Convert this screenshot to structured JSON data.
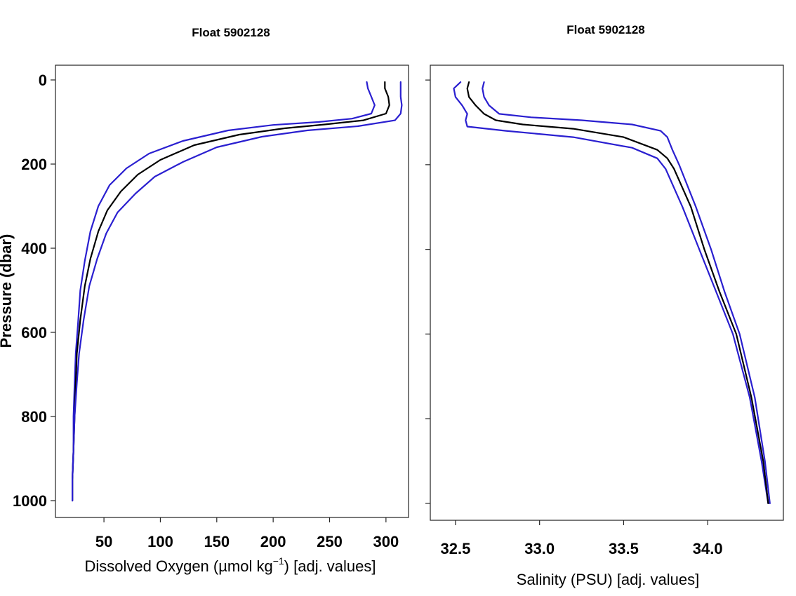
{
  "chart_data": [
    {
      "type": "line",
      "title": "Float 5902128",
      "xlabel": "Dissolved Oxygen (µmol kg",
      "xlabel_sup": "−1",
      "xlabel_tail": ")  [adj. values]",
      "ylabel": "Pressure (dbar)",
      "xlim": [
        7,
        320
      ],
      "ylim": [
        1040,
        -35
      ],
      "y_inverted": true,
      "xticks": [
        50,
        100,
        150,
        200,
        250,
        300
      ],
      "yticks": [
        0,
        200,
        400,
        600,
        800,
        1000
      ],
      "grid": false,
      "colors": {
        "mean": "#000000",
        "bounds": "#2a1fd0"
      },
      "series": [
        {
          "role": "lower",
          "x": [
            283,
            284,
            287,
            290,
            287,
            270,
            240,
            200,
            160,
            120,
            90,
            70,
            55,
            45,
            38,
            33,
            29,
            27,
            25,
            24,
            23,
            23,
            22,
            22
          ],
          "y": [
            5,
            20,
            40,
            60,
            80,
            92,
            100,
            107,
            120,
            145,
            175,
            210,
            250,
            300,
            360,
            430,
            500,
            580,
            650,
            720,
            800,
            880,
            950,
            1000
          ]
        },
        {
          "role": "mean",
          "x": [
            299,
            299,
            302,
            303,
            300,
            280,
            245,
            210,
            170,
            130,
            100,
            80,
            65,
            53,
            45,
            38,
            33,
            29,
            26,
            25,
            24,
            23,
            22,
            22
          ],
          "y": [
            5,
            20,
            40,
            60,
            80,
            96,
            106,
            115,
            130,
            155,
            190,
            225,
            265,
            310,
            360,
            425,
            490,
            570,
            650,
            720,
            800,
            880,
            950,
            1000
          ]
        },
        {
          "role": "upper",
          "x": [
            313,
            313,
            313,
            314,
            313,
            308,
            275,
            230,
            190,
            150,
            120,
            95,
            78,
            62,
            52,
            44,
            37,
            32,
            28,
            26,
            24,
            23,
            22,
            22
          ],
          "y": [
            5,
            20,
            40,
            60,
            80,
            96,
            110,
            120,
            135,
            160,
            195,
            230,
            270,
            315,
            365,
            425,
            490,
            570,
            650,
            720,
            800,
            880,
            950,
            1000
          ]
        }
      ]
    },
    {
      "type": "line",
      "title": "Float 5902128",
      "xlabel": "Salinity (PSU)  [adj. values]",
      "ylabel": "",
      "xlim": [
        32.35,
        34.45
      ],
      "ylim": [
        1040,
        -35
      ],
      "y_inverted": true,
      "xticks": [
        32.5,
        33.0,
        33.5,
        34.0
      ],
      "xtick_labels": [
        "32.5",
        "33.0",
        "33.5",
        "34.0"
      ],
      "yticks": [
        0,
        200,
        400,
        600,
        800,
        1000
      ],
      "show_ytick_labels": false,
      "grid": false,
      "colors": {
        "mean": "#000000",
        "bounds": "#2a1fd0"
      },
      "series": [
        {
          "role": "lower",
          "x": [
            32.53,
            32.49,
            32.5,
            32.54,
            32.57,
            32.56,
            32.57,
            32.8,
            33.2,
            33.55,
            33.7,
            33.75,
            33.85,
            33.95,
            34.05,
            34.15,
            34.25,
            34.32,
            34.36
          ],
          "y": [
            5,
            20,
            40,
            60,
            80,
            95,
            110,
            120,
            135,
            160,
            185,
            210,
            300,
            400,
            500,
            600,
            750,
            900,
            1000
          ]
        },
        {
          "role": "mean",
          "x": [
            32.58,
            32.57,
            32.58,
            32.62,
            32.67,
            32.74,
            32.9,
            33.2,
            33.5,
            33.7,
            33.76,
            33.8,
            33.9,
            33.98,
            34.07,
            34.17,
            34.26,
            34.33,
            34.36
          ],
          "y": [
            5,
            20,
            40,
            60,
            80,
            95,
            105,
            115,
            135,
            165,
            185,
            210,
            300,
            400,
            500,
            600,
            750,
            900,
            1000
          ]
        },
        {
          "role": "upper",
          "x": [
            32.67,
            32.66,
            32.67,
            32.7,
            32.76,
            32.95,
            33.25,
            33.55,
            33.72,
            33.76,
            33.79,
            33.83,
            33.93,
            34.02,
            34.1,
            34.19,
            34.28,
            34.34,
            34.37
          ],
          "y": [
            5,
            20,
            40,
            60,
            80,
            88,
            95,
            105,
            120,
            135,
            165,
            200,
            300,
            400,
            500,
            600,
            750,
            900,
            1000
          ]
        }
      ]
    }
  ]
}
